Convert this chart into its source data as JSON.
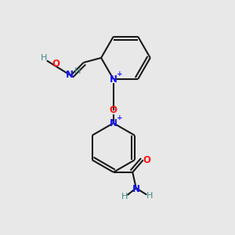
{
  "bg_color": "#e8e8e8",
  "bond_color": "#1a1a1a",
  "N_color": "#1414ff",
  "O_color": "#ff1414",
  "H_color": "#3a8a8a",
  "lw": 1.5,
  "figsize": [
    3.0,
    3.0
  ],
  "dpi": 100,
  "xlim": [
    0,
    10
  ],
  "ylim": [
    0,
    10
  ]
}
